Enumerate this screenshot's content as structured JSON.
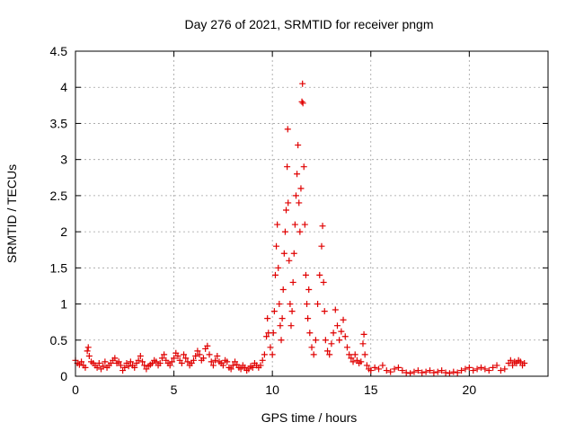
{
  "chart_data": {
    "type": "scatter",
    "title": "Day 276 of 2021, SRMTID for receiver pngm",
    "xlabel": "GPS time / hours",
    "ylabel": "SRMTID / TECUs",
    "xlim": [
      0,
      24
    ],
    "ylim": [
      0,
      4.5
    ],
    "xticks": [
      0,
      5,
      10,
      15,
      20
    ],
    "xtick_labels": [
      "0",
      "5",
      "10",
      "15",
      "20"
    ],
    "yticks": [
      0,
      0.5,
      1,
      1.5,
      2,
      2.5,
      3,
      3.5,
      4,
      4.5
    ],
    "ytick_labels": [
      "0",
      "0.5",
      "1",
      "1.5",
      "2",
      "2.5",
      "3",
      "3.5",
      "4",
      "4.5"
    ],
    "grid": true,
    "marker": "plus",
    "color": "#e00000",
    "series": [
      {
        "name": "SRMTID",
        "points": [
          [
            0.0,
            0.22
          ],
          [
            0.1,
            0.18
          ],
          [
            0.2,
            0.16
          ],
          [
            0.3,
            0.2
          ],
          [
            0.4,
            0.15
          ],
          [
            0.5,
            0.12
          ],
          [
            0.6,
            0.35
          ],
          [
            0.65,
            0.4
          ],
          [
            0.7,
            0.28
          ],
          [
            0.8,
            0.2
          ],
          [
            0.9,
            0.18
          ],
          [
            1.0,
            0.15
          ],
          [
            1.1,
            0.12
          ],
          [
            1.2,
            0.18
          ],
          [
            1.3,
            0.1
          ],
          [
            1.4,
            0.14
          ],
          [
            1.5,
            0.2
          ],
          [
            1.6,
            0.12
          ],
          [
            1.7,
            0.15
          ],
          [
            1.8,
            0.18
          ],
          [
            1.9,
            0.22
          ],
          [
            2.0,
            0.25
          ],
          [
            2.1,
            0.18
          ],
          [
            2.2,
            0.2
          ],
          [
            2.3,
            0.15
          ],
          [
            2.4,
            0.08
          ],
          [
            2.5,
            0.12
          ],
          [
            2.6,
            0.18
          ],
          [
            2.7,
            0.14
          ],
          [
            2.8,
            0.2
          ],
          [
            2.9,
            0.15
          ],
          [
            3.0,
            0.12
          ],
          [
            3.1,
            0.18
          ],
          [
            3.2,
            0.22
          ],
          [
            3.3,
            0.28
          ],
          [
            3.4,
            0.2
          ],
          [
            3.5,
            0.15
          ],
          [
            3.6,
            0.1
          ],
          [
            3.7,
            0.14
          ],
          [
            3.8,
            0.16
          ],
          [
            3.9,
            0.18
          ],
          [
            4.0,
            0.22
          ],
          [
            4.1,
            0.2
          ],
          [
            4.2,
            0.15
          ],
          [
            4.3,
            0.18
          ],
          [
            4.4,
            0.25
          ],
          [
            4.5,
            0.3
          ],
          [
            4.6,
            0.22
          ],
          [
            4.7,
            0.18
          ],
          [
            4.8,
            0.15
          ],
          [
            4.9,
            0.2
          ],
          [
            5.0,
            0.25
          ],
          [
            5.1,
            0.32
          ],
          [
            5.2,
            0.28
          ],
          [
            5.3,
            0.22
          ],
          [
            5.4,
            0.18
          ],
          [
            5.5,
            0.3
          ],
          [
            5.6,
            0.25
          ],
          [
            5.7,
            0.2
          ],
          [
            5.8,
            0.15
          ],
          [
            5.9,
            0.18
          ],
          [
            6.0,
            0.22
          ],
          [
            6.1,
            0.28
          ],
          [
            6.2,
            0.35
          ],
          [
            6.3,
            0.3
          ],
          [
            6.4,
            0.22
          ],
          [
            6.5,
            0.25
          ],
          [
            6.6,
            0.38
          ],
          [
            6.7,
            0.42
          ],
          [
            6.8,
            0.3
          ],
          [
            6.9,
            0.2
          ],
          [
            7.0,
            0.15
          ],
          [
            7.1,
            0.22
          ],
          [
            7.2,
            0.28
          ],
          [
            7.3,
            0.2
          ],
          [
            7.4,
            0.18
          ],
          [
            7.5,
            0.15
          ],
          [
            7.6,
            0.22
          ],
          [
            7.7,
            0.2
          ],
          [
            7.8,
            0.12
          ],
          [
            7.9,
            0.1
          ],
          [
            8.0,
            0.15
          ],
          [
            8.1,
            0.2
          ],
          [
            8.2,
            0.16
          ],
          [
            8.3,
            0.12
          ],
          [
            8.4,
            0.1
          ],
          [
            8.5,
            0.15
          ],
          [
            8.6,
            0.12
          ],
          [
            8.7,
            0.08
          ],
          [
            8.8,
            0.1
          ],
          [
            8.9,
            0.14
          ],
          [
            9.0,
            0.12
          ],
          [
            9.1,
            0.18
          ],
          [
            9.2,
            0.15
          ],
          [
            9.3,
            0.12
          ],
          [
            9.4,
            0.15
          ],
          [
            9.5,
            0.22
          ],
          [
            9.6,
            0.3
          ],
          [
            9.7,
            0.55
          ],
          [
            9.75,
            0.8
          ],
          [
            9.8,
            0.6
          ],
          [
            9.9,
            0.4
          ],
          [
            10.0,
            0.3
          ],
          [
            10.05,
            0.6
          ],
          [
            10.1,
            0.9
          ],
          [
            10.15,
            1.4
          ],
          [
            10.2,
            1.8
          ],
          [
            10.25,
            2.1
          ],
          [
            10.3,
            1.5
          ],
          [
            10.35,
            1.0
          ],
          [
            10.4,
            0.7
          ],
          [
            10.45,
            0.5
          ],
          [
            10.5,
            0.8
          ],
          [
            10.55,
            1.2
          ],
          [
            10.6,
            1.7
          ],
          [
            10.65,
            2.0
          ],
          [
            10.7,
            2.3
          ],
          [
            10.75,
            2.9
          ],
          [
            10.78,
            3.42
          ],
          [
            10.8,
            2.4
          ],
          [
            10.85,
            1.6
          ],
          [
            10.9,
            1.0
          ],
          [
            10.95,
            0.7
          ],
          [
            11.0,
            0.9
          ],
          [
            11.05,
            1.3
          ],
          [
            11.1,
            1.7
          ],
          [
            11.15,
            2.1
          ],
          [
            11.2,
            2.5
          ],
          [
            11.25,
            2.8
          ],
          [
            11.3,
            3.2
          ],
          [
            11.35,
            2.4
          ],
          [
            11.4,
            2.0
          ],
          [
            11.45,
            2.6
          ],
          [
            11.5,
            3.8
          ],
          [
            11.53,
            4.05
          ],
          [
            11.55,
            3.78
          ],
          [
            11.6,
            2.9
          ],
          [
            11.65,
            2.1
          ],
          [
            11.7,
            1.4
          ],
          [
            11.75,
            1.0
          ],
          [
            11.8,
            0.8
          ],
          [
            11.85,
            1.2
          ],
          [
            11.9,
            0.6
          ],
          [
            12.0,
            0.4
          ],
          [
            12.1,
            0.3
          ],
          [
            12.2,
            0.5
          ],
          [
            12.3,
            1.0
          ],
          [
            12.4,
            1.4
          ],
          [
            12.5,
            1.8
          ],
          [
            12.55,
            2.08
          ],
          [
            12.6,
            1.3
          ],
          [
            12.65,
            0.9
          ],
          [
            12.7,
            0.5
          ],
          [
            12.8,
            0.35
          ],
          [
            12.9,
            0.3
          ],
          [
            13.0,
            0.45
          ],
          [
            13.1,
            0.6
          ],
          [
            13.2,
            0.92
          ],
          [
            13.3,
            0.7
          ],
          [
            13.4,
            0.5
          ],
          [
            13.5,
            0.62
          ],
          [
            13.6,
            0.78
          ],
          [
            13.7,
            0.55
          ],
          [
            13.8,
            0.4
          ],
          [
            13.9,
            0.3
          ],
          [
            14.0,
            0.25
          ],
          [
            14.1,
            0.2
          ],
          [
            14.2,
            0.3
          ],
          [
            14.3,
            0.22
          ],
          [
            14.4,
            0.18
          ],
          [
            14.5,
            0.2
          ],
          [
            14.6,
            0.45
          ],
          [
            14.65,
            0.58
          ],
          [
            14.7,
            0.3
          ],
          [
            14.8,
            0.15
          ],
          [
            14.9,
            0.1
          ],
          [
            15.0,
            0.08
          ],
          [
            15.2,
            0.12
          ],
          [
            15.4,
            0.1
          ],
          [
            15.6,
            0.15
          ],
          [
            15.8,
            0.08
          ],
          [
            16.0,
            0.06
          ],
          [
            16.2,
            0.1
          ],
          [
            16.4,
            0.12
          ],
          [
            16.6,
            0.08
          ],
          [
            16.8,
            0.05
          ],
          [
            17.0,
            0.04
          ],
          [
            17.2,
            0.06
          ],
          [
            17.4,
            0.08
          ],
          [
            17.6,
            0.05
          ],
          [
            17.8,
            0.06
          ],
          [
            18.0,
            0.08
          ],
          [
            18.2,
            0.05
          ],
          [
            18.4,
            0.06
          ],
          [
            18.6,
            0.08
          ],
          [
            18.8,
            0.05
          ],
          [
            19.0,
            0.04
          ],
          [
            19.2,
            0.06
          ],
          [
            19.4,
            0.05
          ],
          [
            19.6,
            0.08
          ],
          [
            19.8,
            0.1
          ],
          [
            20.0,
            0.12
          ],
          [
            20.2,
            0.08
          ],
          [
            20.4,
            0.1
          ],
          [
            20.6,
            0.12
          ],
          [
            20.8,
            0.1
          ],
          [
            21.0,
            0.08
          ],
          [
            21.2,
            0.12
          ],
          [
            21.4,
            0.15
          ],
          [
            21.6,
            0.08
          ],
          [
            21.8,
            0.1
          ],
          [
            22.0,
            0.18
          ],
          [
            22.1,
            0.22
          ],
          [
            22.2,
            0.15
          ],
          [
            22.3,
            0.2
          ],
          [
            22.4,
            0.18
          ],
          [
            22.5,
            0.22
          ],
          [
            22.6,
            0.2
          ],
          [
            22.7,
            0.15
          ],
          [
            22.8,
            0.18
          ]
        ]
      }
    ]
  }
}
